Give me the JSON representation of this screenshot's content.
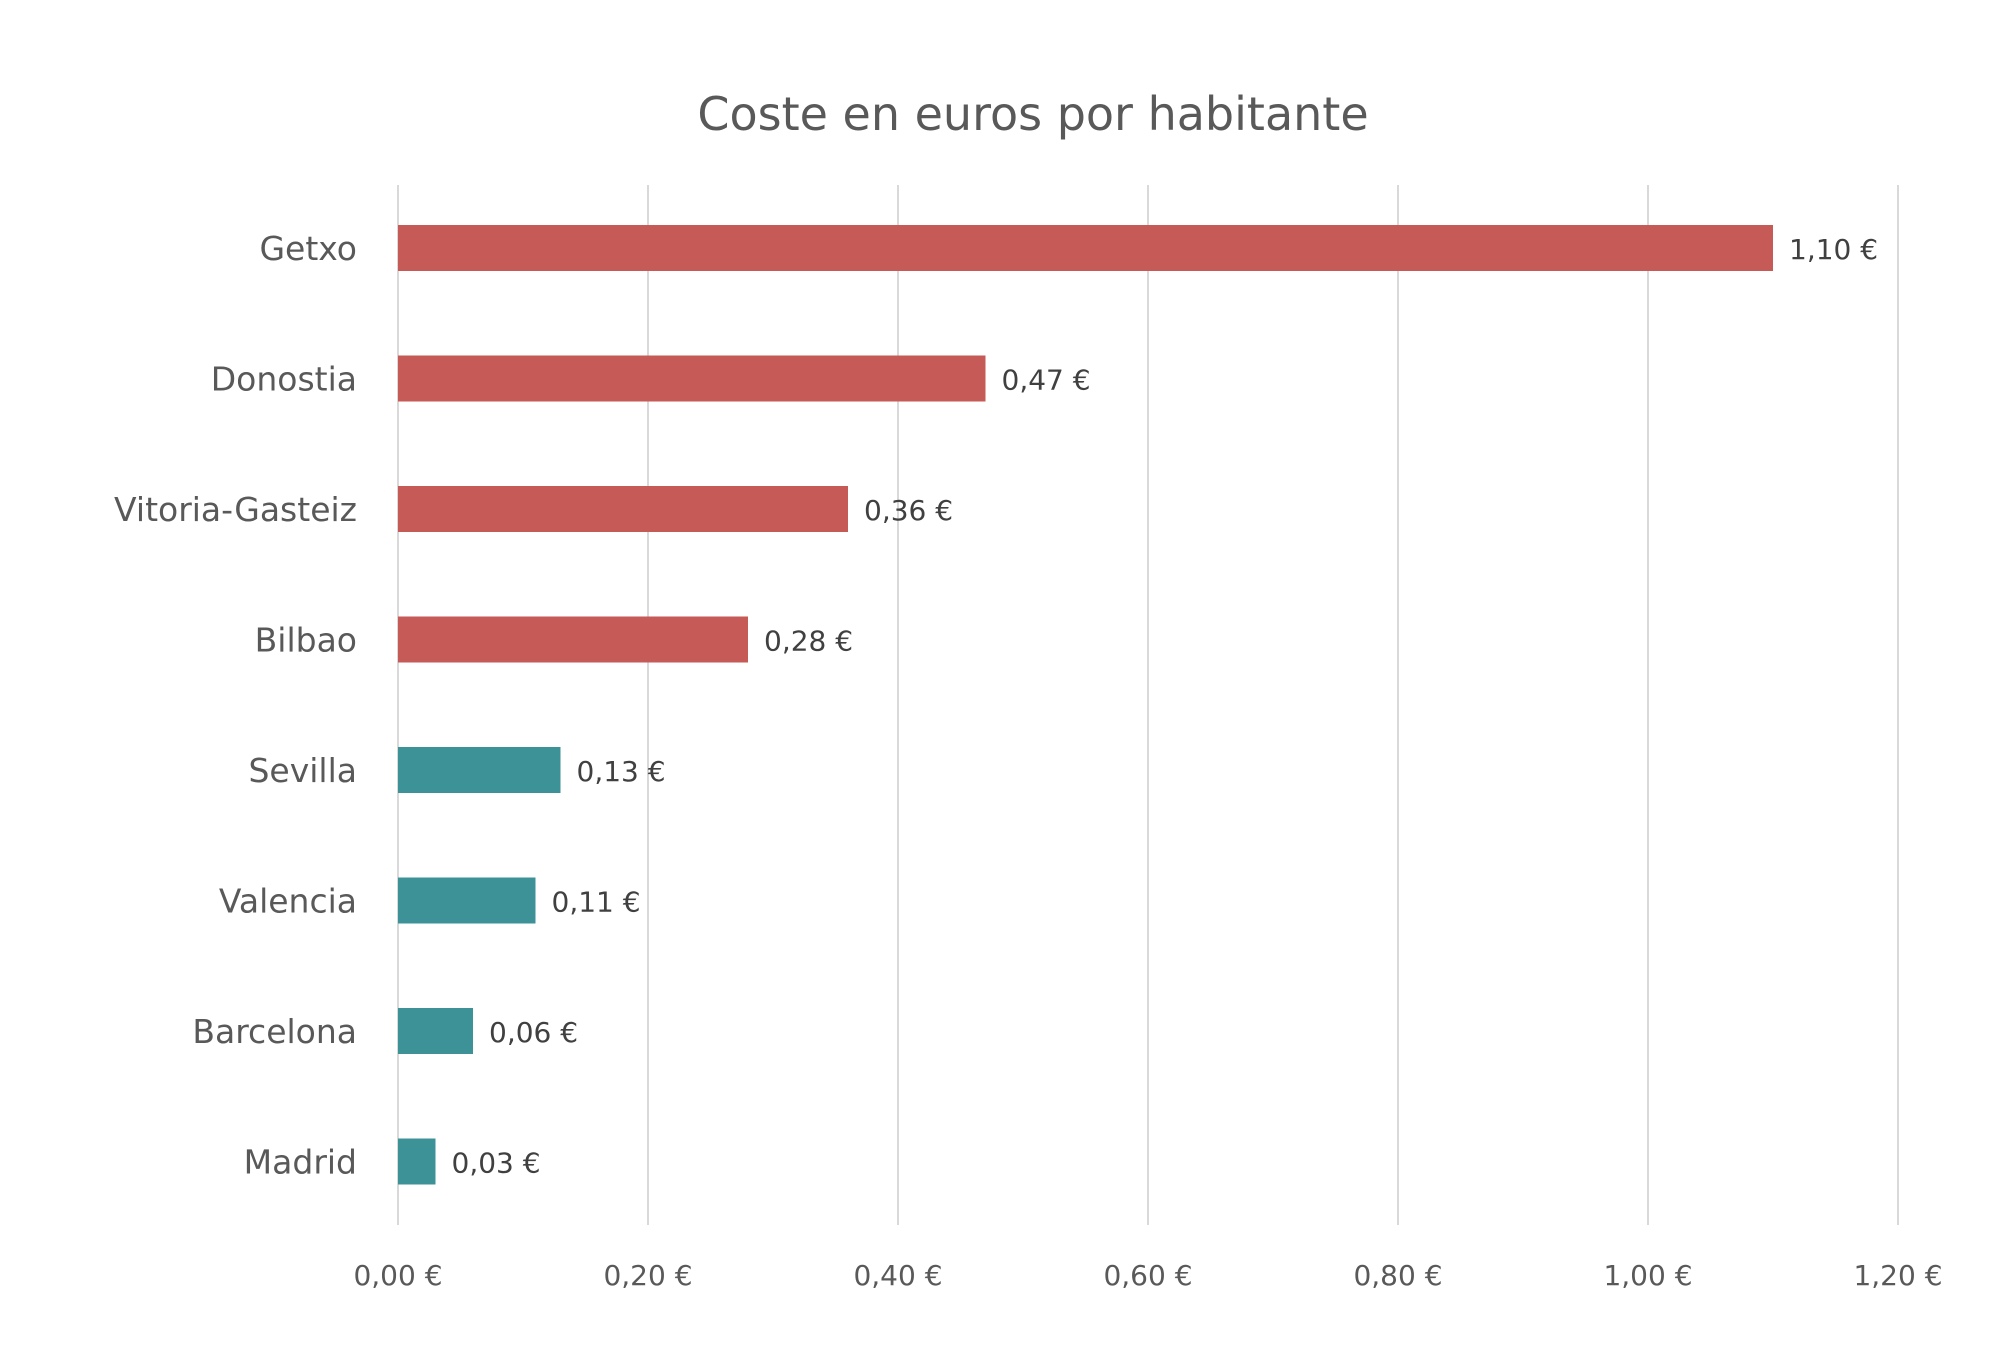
{
  "chart_data": {
    "type": "bar",
    "orientation": "horizontal",
    "title": "Coste en euros por habitante",
    "xlabel": "",
    "ylabel": "",
    "xlim": [
      0,
      1.2
    ],
    "x_ticks": [
      0,
      0.2,
      0.4,
      0.6,
      0.8,
      1.0,
      1.2
    ],
    "x_tick_labels": [
      "0,00 €",
      "0,20 €",
      "0,40 €",
      "0,60 €",
      "0,80 €",
      "1,00 €",
      "1,20 €"
    ],
    "grid": true,
    "legend": "none",
    "categories": [
      "Getxo",
      "Donostia",
      "Vitoria-Gasteiz",
      "Bilbao",
      "Sevilla",
      "Valencia",
      "Barcelona",
      "Madrid"
    ],
    "values": [
      1.1,
      0.47,
      0.36,
      0.28,
      0.13,
      0.11,
      0.06,
      0.03
    ],
    "value_labels": [
      "1,10 €",
      "0,47 €",
      "0,36 €",
      "0,28 €",
      "0,13 €",
      "0,11 €",
      "0,06 €",
      "0,03 €"
    ],
    "bar_colors": [
      "#c55a56",
      "#c55a56",
      "#c55a56",
      "#c55a56",
      "#3d9298",
      "#3d9298",
      "#3d9298",
      "#3d9298"
    ]
  }
}
